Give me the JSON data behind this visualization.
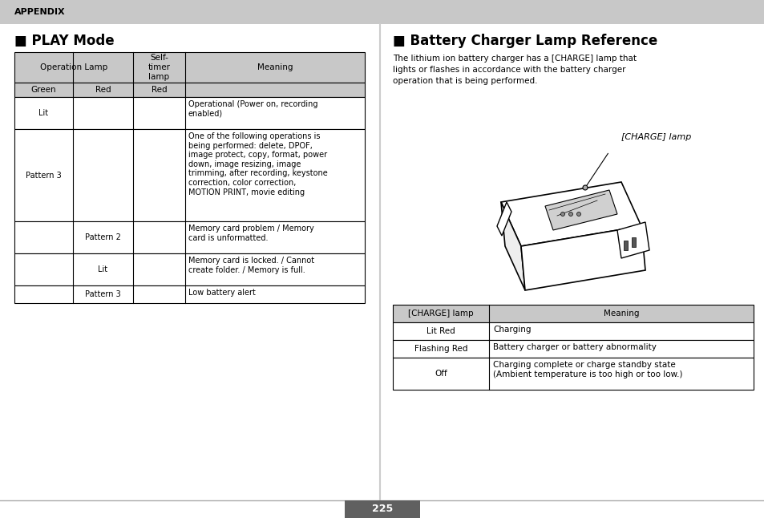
{
  "bg_color": "#ffffff",
  "appendix_text": "APPENDIX",
  "page_num": "225",
  "left_title": "PLAY Mode",
  "right_title": "Battery Charger Lamp Reference",
  "right_intro": "The lithium ion battery charger has a [CHARGE] lamp that\nlights or flashes in accordance with the battery charger\noperation that is being performed.",
  "charge_lamp_label": "[CHARGE] lamp",
  "left_sub_headers": [
    "Green",
    "Red",
    "Red"
  ],
  "right_table_headers": [
    "[CHARGE] lamp",
    "Meaning"
  ],
  "right_table_rows": [
    [
      "Lit Red",
      "Charging"
    ],
    [
      "Flashing Red",
      "Battery charger or battery abnormality"
    ],
    [
      "Off",
      "Charging complete or charge standby state\n(Ambient temperature is too high or too low.)"
    ]
  ]
}
